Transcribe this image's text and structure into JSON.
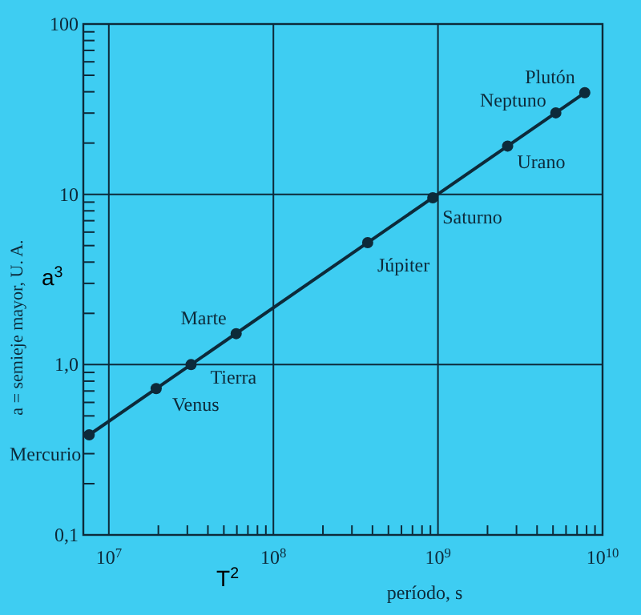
{
  "chart_data": {
    "type": "scatter",
    "xlabel": "período, s",
    "ylabel": "a = semieje mayor, U. A.",
    "log": "xy",
    "grid": true,
    "xlim": [
      7000000.0,
      10000000000.0
    ],
    "ylim": [
      0.1,
      100
    ],
    "xticks": [
      {
        "value": 10000000.0,
        "label": "10$^{7}$"
      },
      {
        "value": 20000000.0,
        "label": null
      },
      {
        "value": 30000000.0,
        "label": null
      },
      {
        "value": 40000000.0,
        "label": null
      },
      {
        "value": 50000000.0,
        "label": null
      },
      {
        "value": 60000000.0,
        "label": null
      },
      {
        "value": 70000000.0,
        "label": null
      },
      {
        "value": 80000000.0,
        "label": null
      },
      {
        "value": 90000000.0,
        "label": null
      },
      {
        "value": 100000000.0,
        "label": "10$^{8}$"
      },
      {
        "value": 200000000.0,
        "label": null
      },
      {
        "value": 300000000.0,
        "label": null
      },
      {
        "value": 400000000.0,
        "label": null
      },
      {
        "value": 500000000.0,
        "label": null
      },
      {
        "value": 600000000.0,
        "label": null
      },
      {
        "value": 700000000.0,
        "label": null
      },
      {
        "value": 800000000.0,
        "label": null
      },
      {
        "value": 900000000.0,
        "label": null
      },
      {
        "value": 1000000000.0,
        "label": "10$^{9}$"
      },
      {
        "value": 2000000000.0,
        "label": null
      },
      {
        "value": 3000000000.0,
        "label": null
      },
      {
        "value": 4000000000.0,
        "label": null
      },
      {
        "value": 5000000000.0,
        "label": null
      },
      {
        "value": 6000000000.0,
        "label": null
      },
      {
        "value": 7000000000.0,
        "label": null
      },
      {
        "value": 8000000000.0,
        "label": null
      },
      {
        "value": 9000000000.0,
        "label": null
      },
      {
        "value": 10000000000.0,
        "label": "10$^{10}$"
      }
    ],
    "yticks": [
      {
        "value": 0.1,
        "label": "0,1"
      },
      {
        "value": 0.2,
        "label": null
      },
      {
        "value": 0.3,
        "label": null
      },
      {
        "value": 0.4,
        "label": null
      },
      {
        "value": 0.5,
        "label": null
      },
      {
        "value": 0.6,
        "label": null
      },
      {
        "value": 0.7,
        "label": null
      },
      {
        "value": 0.8,
        "label": null
      },
      {
        "value": 0.9,
        "label": null
      },
      {
        "value": 1,
        "label": "1,0"
      },
      {
        "value": 2,
        "label": null
      },
      {
        "value": 3,
        "label": null
      },
      {
        "value": 4,
        "label": null
      },
      {
        "value": 5,
        "label": null
      },
      {
        "value": 6,
        "label": null
      },
      {
        "value": 7,
        "label": null
      },
      {
        "value": 8,
        "label": null
      },
      {
        "value": 9,
        "label": null
      },
      10,
      {
        "value": 20,
        "label": null
      },
      {
        "value": 30,
        "label": null
      },
      {
        "value": 40,
        "label": null
      },
      {
        "value": 50,
        "label": null
      },
      {
        "value": 60,
        "label": null
      },
      {
        "value": 70,
        "label": null
      },
      {
        "value": 80,
        "label": null
      },
      {
        "value": 90,
        "label": null
      },
      100
    ],
    "series": [
      {
        "type": "line",
        "color": "#0d2a3a",
        "marker": "none",
        "x": [
          7600000.0,
          7800000000.0
        ],
        "values": [
          0.387,
          39.5
        ]
      },
      {
        "color": "#0d2a3a",
        "marker": "circle",
        "x": [
          7600000.0,
          19400000.0,
          31600000.0,
          59400000.0,
          374000000.0,
          930000000.0,
          2650000000.0,
          5200000000.0,
          7800000000.0
        ],
        "values": [
          0.387,
          0.723,
          1.0,
          1.52,
          5.2,
          9.54,
          19.2,
          30.1,
          39.5
        ]
      }
    ],
    "annotations": [
      {
        "text": "Mercurio",
        "x": 7600000.0,
        "y": 0.387
      },
      {
        "text": "Venus",
        "x": 19400000.0,
        "y": 0.723
      },
      {
        "text": "Tierra",
        "x": 31600000.0,
        "y": 1.0
      },
      {
        "text": "Marte",
        "x": 59400000.0,
        "y": 1.52
      },
      {
        "text": "Júpiter",
        "x": 374000000.0,
        "y": 5.2
      },
      {
        "text": "Saturno",
        "x": 930000000.0,
        "y": 9.54
      },
      {
        "text": "Urano",
        "x": 2650000000.0,
        "y": 19.2
      },
      {
        "text": "Neptuno",
        "x": 5200000000.0,
        "y": 30.1
      },
      {
        "text": "Plutón",
        "x": 7800000000.0,
        "y": 39.5
      },
      "a$^{3}$",
      "T$^{2}$"
    ]
  }
}
